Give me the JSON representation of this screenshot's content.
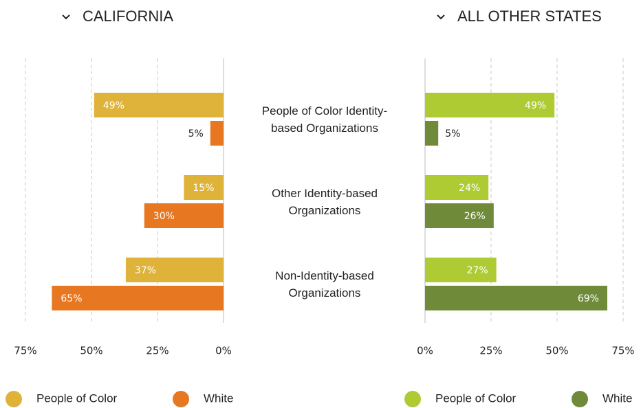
{
  "chart_data": [
    {
      "type": "bar",
      "orientation": "horizontal",
      "x_reversed": true,
      "title": "CALIFORNIA",
      "categories": [
        "People of Color Identity-based Organizations",
        "Other Identity-based Organizations",
        "Non-Identity-based Organizations"
      ],
      "series": [
        {
          "name": "People of Color",
          "color": "#dfb33a",
          "values": [
            49,
            15,
            37
          ],
          "value_labels": [
            "49%",
            "15%",
            "37%"
          ]
        },
        {
          "name": "White",
          "color": "#e87722",
          "values": [
            5,
            30,
            65
          ],
          "value_labels": [
            "5%",
            "30%",
            "65%"
          ]
        }
      ],
      "xlim": [
        0,
        75
      ],
      "xticks": [
        {
          "value": 0,
          "label": "0%"
        },
        {
          "value": 25,
          "label": "25%"
        },
        {
          "value": 50,
          "label": "50%"
        },
        {
          "value": 75,
          "label": "75%"
        }
      ],
      "grid": true
    },
    {
      "type": "bar",
      "orientation": "horizontal",
      "x_reversed": false,
      "title": "ALL OTHER STATES",
      "series": [
        {
          "name": "People of Color",
          "color": "#afcb34",
          "values": [
            49,
            24,
            27
          ],
          "value_labels": [
            "49%",
            "24%",
            "27%"
          ]
        },
        {
          "name": "White",
          "color": "#6f8b3a",
          "values": [
            5,
            26,
            69
          ],
          "value_labels": [
            "5%",
            "26%",
            "69%"
          ]
        }
      ],
      "xlim": [
        0,
        75
      ],
      "xticks": [
        {
          "value": 0,
          "label": "0%"
        },
        {
          "value": 25,
          "label": "25%"
        },
        {
          "value": 50,
          "label": "50%"
        },
        {
          "value": 75,
          "label": "75%"
        }
      ],
      "grid": true
    }
  ]
}
